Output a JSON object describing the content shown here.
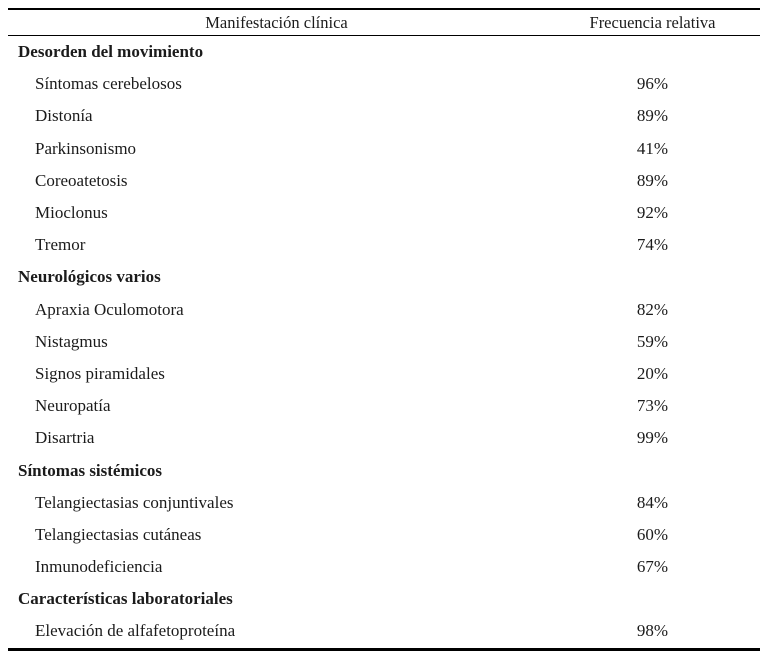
{
  "table": {
    "col_manifestacion": "Manifestación clínica",
    "col_frecuencia": "Frecuencia relativa",
    "sections": [
      {
        "title": "Desorden del movimiento",
        "rows": [
          {
            "label": "Síntomas cerebelosos",
            "value": "96%"
          },
          {
            "label": "Distonía",
            "value": "89%"
          },
          {
            "label": "Parkinsonismo",
            "value": "41%"
          },
          {
            "label": "Coreoatetosis",
            "value": "89%"
          },
          {
            "label": "Mioclonus",
            "value": "92%"
          },
          {
            "label": "Tremor",
            "value": "74%"
          }
        ]
      },
      {
        "title": "Neurológicos varios",
        "rows": [
          {
            "label": "Apraxia Oculomotora",
            "value": "82%"
          },
          {
            "label": "Nistagmus",
            "value": "59%"
          },
          {
            "label": "Signos piramidales",
            "value": "20%"
          },
          {
            "label": "Neuropatía",
            "value": "73%"
          },
          {
            "label": "Disartria",
            "value": "99%"
          }
        ]
      },
      {
        "title": "Síntomas sistémicos",
        "rows": [
          {
            "label": "Telangiectasias conjuntivales",
            "value": "84%"
          },
          {
            "label": "Telangiectasias cutáneas",
            "value": "60%"
          },
          {
            "label": "Inmunodeficiencia",
            "value": "67%"
          }
        ]
      },
      {
        "title": "Características laboratoriales",
        "rows": [
          {
            "label": "Elevación de alfafetoproteína",
            "value": "98%"
          }
        ]
      }
    ]
  },
  "colors": {
    "background": "#ffffff",
    "text": "#1b1b1b",
    "rule": "#000000"
  }
}
